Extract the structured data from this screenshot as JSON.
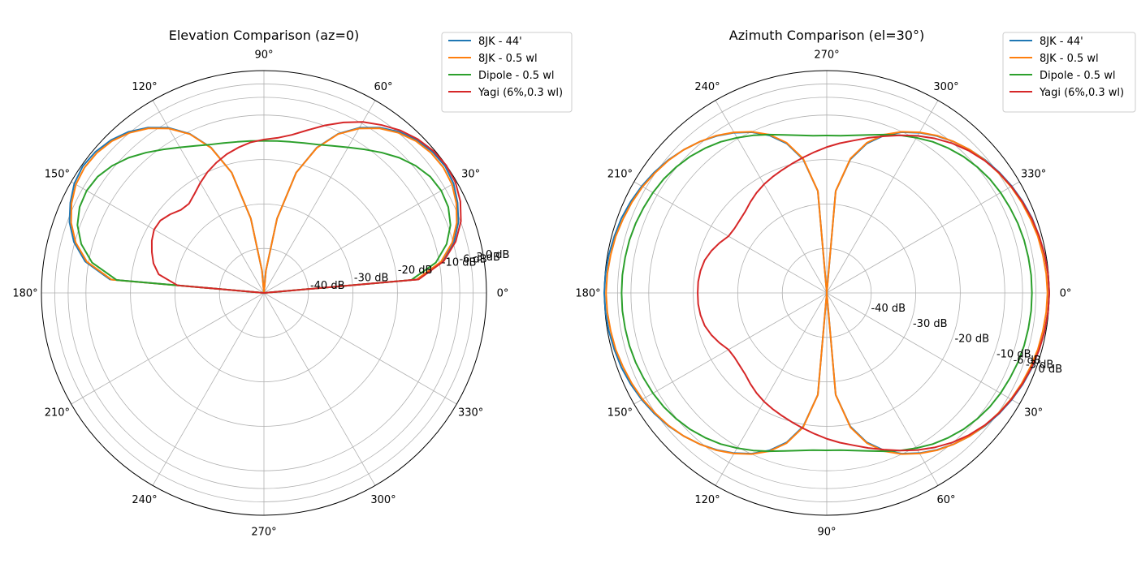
{
  "chart_data": [
    {
      "type": "line",
      "projection": "polar",
      "title": "Elevation Comparison (az=0)",
      "theta_direction": "counterclockwise",
      "theta_zero": "east",
      "theta_ticks": [
        "0°",
        "30°",
        "60°",
        "90°",
        "120°",
        "150°",
        "180°",
        "210°",
        "240°",
        "270°",
        "300°",
        "330°"
      ],
      "r_ticks": [
        -40,
        -30,
        -20,
        -10,
        -6,
        -3,
        0
      ],
      "r_tick_labels": [
        "-40 dB",
        "-30 dB",
        "-20 dB",
        "-10 dB",
        "-6 dB",
        "-3 dB",
        "0 dB"
      ],
      "r_label_angle_deg": 10,
      "rlim_db": [
        -50,
        0
      ],
      "grid": true,
      "legend": "upper-right",
      "angles_deg": [
        0,
        5,
        10,
        15,
        20,
        25,
        30,
        35,
        40,
        45,
        50,
        55,
        60,
        65,
        70,
        75,
        80,
        85,
        90,
        95,
        100,
        105,
        110,
        115,
        120,
        125,
        130,
        135,
        140,
        145,
        150,
        155,
        160,
        165,
        170,
        175,
        180
      ],
      "series": [
        {
          "name": "8JK - 44'",
          "color": "#1f77b4",
          "values_db": [
            -50,
            -15.3,
            -9.2,
            -5.8,
            -3.5,
            -2.0,
            -0.8,
            -0.3,
            -0.6,
            -1.4,
            -2.7,
            -4.6,
            -7.1,
            -10.5,
            -15.2,
            -22,
            -33,
            -45,
            -50,
            -45,
            -33,
            -22,
            -15.2,
            -10.5,
            -7.1,
            -4.6,
            -2.7,
            -1.4,
            -0.6,
            -0.3,
            -0.8,
            -2.0,
            -3.5,
            -5.8,
            -9.2,
            -15.3,
            -50
          ]
        },
        {
          "name": "8JK - 0.5 wl",
          "color": "#ff7f0e",
          "values_db": [
            -50,
            -15.6,
            -9.6,
            -6.2,
            -3.9,
            -2.3,
            -1.2,
            -0.8,
            -1.0,
            -1.7,
            -3.0,
            -4.8,
            -7.3,
            -10.6,
            -15.3,
            -22,
            -33,
            -45,
            -50,
            -45,
            -33,
            -22,
            -15.3,
            -10.6,
            -7.3,
            -4.8,
            -3.0,
            -1.7,
            -1.0,
            -0.8,
            -1.2,
            -2.3,
            -3.9,
            -6.2,
            -9.6,
            -15.6,
            -50
          ]
        },
        {
          "name": "Dipole - 0.5 wl",
          "color": "#2ca02c",
          "values_db": [
            -50,
            -16.8,
            -10.8,
            -7.5,
            -5.4,
            -4.3,
            -4.0,
            -4.4,
            -5.5,
            -7.0,
            -8.8,
            -10.6,
            -12.2,
            -13.5,
            -14.5,
            -15.1,
            -15.5,
            -15.7,
            -15.8,
            -15.7,
            -15.5,
            -15.1,
            -14.5,
            -13.5,
            -12.2,
            -10.6,
            -8.8,
            -7.0,
            -5.5,
            -4.4,
            -4.0,
            -4.3,
            -5.4,
            -7.5,
            -10.8,
            -16.8,
            -50
          ]
        },
        {
          "name": "Yagi (6%,0.3 wl)",
          "color": "#d62728",
          "values_db": [
            -50,
            -15.1,
            -9.0,
            -5.4,
            -2.9,
            -1.3,
            -0.3,
            0.0,
            -0.3,
            -1.1,
            -2.3,
            -3.9,
            -5.6,
            -7.7,
            -9.9,
            -12.1,
            -13.9,
            -15.0,
            -15.5,
            -16.0,
            -16.8,
            -17.7,
            -18.8,
            -20.0,
            -21.4,
            -22.8,
            -23.8,
            -23.6,
            -22.5,
            -21.6,
            -21.5,
            -22.2,
            -23.2,
            -24.3,
            -26.0,
            -30.5,
            -50
          ]
        }
      ]
    },
    {
      "type": "line",
      "projection": "polar",
      "title": "Azimuth Comparison (el=30°)",
      "theta_direction": "clockwise",
      "theta_zero": "east",
      "theta_ticks": [
        "0°",
        "30°",
        "60°",
        "90°",
        "120°",
        "150°",
        "180°",
        "210°",
        "240°",
        "270°",
        "300°",
        "330°"
      ],
      "r_ticks": [
        -40,
        -30,
        -20,
        -10,
        -6,
        -3,
        0
      ],
      "r_tick_labels": [
        "-40 dB",
        "-30 dB",
        "-20 dB",
        "-10 dB",
        "-6 dB",
        "-3 dB",
        "0 dB"
      ],
      "r_label_angle_deg": 20,
      "rlim_db": [
        -50,
        0
      ],
      "grid": true,
      "legend": "upper-right",
      "angles_deg": [
        0,
        5,
        10,
        15,
        20,
        25,
        30,
        35,
        40,
        45,
        50,
        55,
        60,
        65,
        70,
        75,
        80,
        85,
        90,
        95,
        100,
        105,
        110,
        115,
        120,
        125,
        130,
        135,
        140,
        145,
        150,
        155,
        160,
        165,
        170,
        175,
        180
      ],
      "series": [
        {
          "name": "8JK - 44'",
          "color": "#1f77b4",
          "values_db": [
            0.0,
            -0.1,
            -0.3,
            -0.6,
            -0.9,
            -1.4,
            -2.0,
            -2.7,
            -3.5,
            -4.5,
            -5.6,
            -6.9,
            -8.4,
            -10.1,
            -12.3,
            -15.2,
            -19.5,
            -27,
            -50,
            -27,
            -19.5,
            -15.2,
            -12.3,
            -10.1,
            -8.4,
            -6.9,
            -5.6,
            -4.5,
            -3.5,
            -2.7,
            -2.0,
            -1.4,
            -0.9,
            -0.6,
            -0.3,
            -0.1,
            0.0
          ]
        },
        {
          "name": "8JK - 0.5 wl",
          "color": "#ff7f0e",
          "values_db": [
            -0.4,
            -0.5,
            -0.7,
            -0.9,
            -1.3,
            -1.7,
            -2.2,
            -2.9,
            -3.6,
            -4.5,
            -5.6,
            -6.8,
            -8.3,
            -10.0,
            -12.1,
            -15.0,
            -19.3,
            -27,
            -50,
            -27,
            -19.3,
            -15.0,
            -12.1,
            -10.0,
            -8.3,
            -6.8,
            -5.6,
            -4.5,
            -3.6,
            -2.9,
            -2.2,
            -1.7,
            -1.3,
            -0.9,
            -0.7,
            -0.5,
            -0.4
          ]
        },
        {
          "name": "Dipole - 0.5 wl",
          "color": "#2ca02c",
          "values_db": [
            -3.9,
            -3.9,
            -4.0,
            -4.1,
            -4.3,
            -4.6,
            -4.9,
            -5.3,
            -5.9,
            -6.6,
            -7.5,
            -8.5,
            -9.7,
            -10.9,
            -12.1,
            -13.2,
            -14.0,
            -14.5,
            -14.6,
            -14.5,
            -14.0,
            -13.2,
            -12.1,
            -10.9,
            -9.7,
            -8.5,
            -7.5,
            -6.6,
            -5.9,
            -5.3,
            -4.9,
            -4.6,
            -4.3,
            -4.1,
            -4.0,
            -3.9,
            -3.9
          ]
        },
        {
          "name": "Yagi (6%,0.3 wl)",
          "color": "#d62728",
          "values_db": [
            0.0,
            -0.1,
            -0.3,
            -0.6,
            -1.0,
            -1.5,
            -2.1,
            -2.8,
            -3.7,
            -4.8,
            -6.1,
            -7.6,
            -9.2,
            -10.9,
            -12.5,
            -13.9,
            -15.2,
            -16.2,
            -17.2,
            -18.2,
            -19.1,
            -19.9,
            -20.6,
            -21.2,
            -21.8,
            -22.5,
            -23.3,
            -24.1,
            -24.5,
            -24.7,
            -24.5,
            -23.4,
            -22.4,
            -21.6,
            -21.2,
            -21.0,
            -21.0
          ]
        }
      ]
    }
  ]
}
